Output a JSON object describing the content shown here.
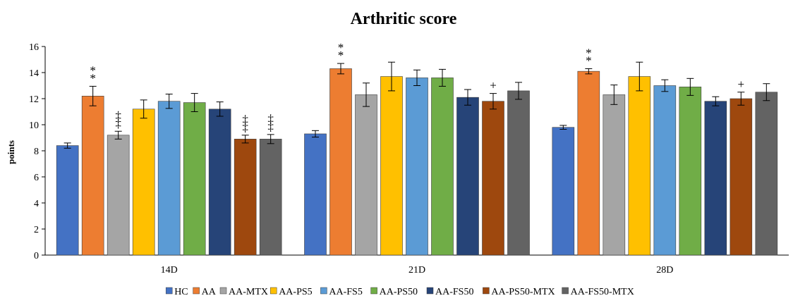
{
  "chart_data": {
    "type": "bar",
    "title": "Arthritic score",
    "ylabel": "points",
    "xlabel": "",
    "ylim": [
      0,
      16
    ],
    "yticks": [
      0,
      2,
      4,
      6,
      8,
      10,
      12,
      14,
      16
    ],
    "grid": false,
    "legend_position": "bottom",
    "categories": [
      "14D",
      "21D",
      "28D"
    ],
    "series": [
      {
        "name": "HC",
        "color": "#4472c4",
        "values": [
          8.4,
          9.3,
          9.8
        ],
        "errors": [
          0.2,
          0.25,
          0.15
        ],
        "annotations": [
          "",
          "",
          ""
        ]
      },
      {
        "name": "AA",
        "color": "#ed7d31",
        "values": [
          12.2,
          14.3,
          14.1
        ],
        "errors": [
          0.75,
          0.4,
          0.2
        ],
        "annotations": [
          "**",
          "**",
          "**"
        ]
      },
      {
        "name": "AA-MTX",
        "color": "#a5a5a5",
        "values": [
          9.2,
          12.3,
          12.3
        ],
        "errors": [
          0.3,
          0.9,
          0.75
        ],
        "annotations": [
          "‡‡",
          "",
          ""
        ]
      },
      {
        "name": "AA-PS5",
        "color": "#ffc000",
        "values": [
          11.2,
          13.7,
          13.7
        ],
        "errors": [
          0.7,
          1.1,
          1.1
        ],
        "annotations": [
          "",
          "",
          ""
        ]
      },
      {
        "name": "AA-FS5",
        "color": "#5b9bd5",
        "values": [
          11.8,
          13.6,
          13.0
        ],
        "errors": [
          0.55,
          0.6,
          0.45
        ],
        "annotations": [
          "",
          "",
          ""
        ]
      },
      {
        "name": "AA-PS50",
        "color": "#70ad47",
        "values": [
          11.7,
          13.6,
          12.9
        ],
        "errors": [
          0.7,
          0.65,
          0.65
        ],
        "annotations": [
          "",
          "",
          ""
        ]
      },
      {
        "name": "AA-FS50",
        "color": "#264478",
        "values": [
          11.2,
          12.1,
          11.8
        ],
        "errors": [
          0.55,
          0.6,
          0.35
        ],
        "annotations": [
          "",
          "",
          ""
        ]
      },
      {
        "name": "AA-PS50-MTX",
        "color": "#9e480e",
        "values": [
          8.9,
          11.8,
          12.0
        ],
        "errors": [
          0.3,
          0.6,
          0.5
        ],
        "annotations": [
          "‡‡",
          "+",
          "+"
        ]
      },
      {
        "name": "AA-FS50-MTX",
        "color": "#636363",
        "values": [
          8.9,
          12.6,
          12.5
        ],
        "errors": [
          0.35,
          0.65,
          0.65
        ],
        "annotations": [
          "‡‡",
          "",
          ""
        ]
      }
    ]
  }
}
